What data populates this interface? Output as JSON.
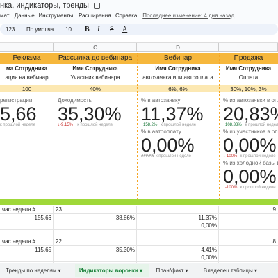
{
  "title": "нка, индикаторы, тренды",
  "menu": [
    "мат",
    "Данные",
    "Инструменты",
    "Расширения",
    "Справка"
  ],
  "last_edit": "Последнее изменение: 4 дня назад",
  "toolbar": {
    "format": "123",
    "font": "По умолча...",
    "size": "10"
  },
  "columns": [
    null,
    "C",
    "D",
    null
  ],
  "blocks": [
    {
      "header": "Реклама",
      "name": "ма Сотрудника",
      "role": "ация на вебинар",
      "conv": "100",
      "metrics": [
        {
          "label": "регистрации",
          "value": "5,66",
          "note": "к прошлой неделе"
        }
      ]
    },
    {
      "header": "Рассылка до вебинара",
      "name": "Имя Сотрудника",
      "role": "Участник вебинара",
      "conv": "40%",
      "metrics": [
        {
          "label": "Доходимость",
          "value": "35,30%",
          "delta": "↓-9.15%",
          "note": "к прошлой неделе"
        }
      ]
    },
    {
      "header": "Вебинар",
      "name": "Имя Сотрудника",
      "role": "автозаявка или автооплата",
      "conv": "6%, 6%",
      "metrics": [
        {
          "label": "% в автозаявку",
          "value": "11,37%",
          "delta": "↑158,2%",
          "note": "к прошлой неделе"
        },
        {
          "label": "% в автооплату",
          "value": "0,00%",
          "delta": "####%",
          "note": "к прошлой неделе"
        }
      ]
    },
    {
      "header": "Продажа",
      "name": "Имя Сотрудника",
      "role": "Оплата",
      "conv": "30%, 10%, 3%",
      "metrics": [
        {
          "label": "% из автозаявки в опла",
          "value": "20,83%",
          "delta": "↑108,33%",
          "note": "к прошлой неделе"
        },
        {
          "label": "% из участников в опла",
          "value": "0,00%",
          "delta": "↓-100%",
          "note": "к прошлой неделе"
        },
        {
          "label": "% из холодной базы в опла",
          "value": "0,00%",
          "delta": "↓-100%",
          "note": "к прошлой неделе"
        }
      ]
    }
  ],
  "rows": [
    [
      "час неделя #",
      "23",
      null,
      "9"
    ],
    [
      "155,66",
      "38,86%",
      "11,37%",
      null
    ],
    [
      null,
      null,
      "0,00%",
      null
    ],
    [
      null,
      null,
      null,
      null
    ],
    [
      "час неделя #",
      "22",
      null,
      "8"
    ],
    [
      "115,65",
      "35,30%",
      "4,41%",
      null
    ],
    [
      null,
      null,
      "0,00%",
      null
    ]
  ],
  "tabs": [
    "Тренды по неделям",
    "Индикаторы воронки",
    "План/факт",
    "Владелец таблицы"
  ],
  "active_tab": 1
}
